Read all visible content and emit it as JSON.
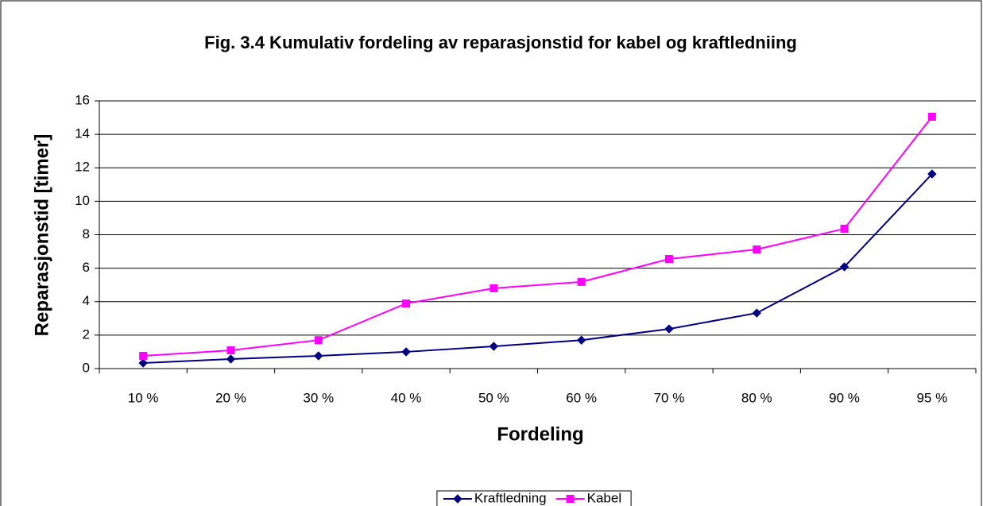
{
  "chart_data": {
    "type": "line",
    "title": "Fig. 3.4 Kumulativ fordeling av reparasjonstid for kabel og kraftledniing",
    "x_label": "Fordeling",
    "y_label": "Reparasjonstid [timer]",
    "categories": [
      "10 %",
      "20 %",
      "30 %",
      "40 %",
      "50 %",
      "60 %",
      "70 %",
      "80 %",
      "90 %",
      "95 %"
    ],
    "series": [
      {
        "name": "Kraftledning",
        "color": "#000080",
        "marker": "diamond",
        "values": [
          0.33,
          0.57,
          0.76,
          1.0,
          1.33,
          1.7,
          2.37,
          3.32,
          6.08,
          11.63
        ]
      },
      {
        "name": "Kabel",
        "color": "#ff00ff",
        "marker": "square",
        "values": [
          0.76,
          1.09,
          1.7,
          3.89,
          4.8,
          5.18,
          6.55,
          7.12,
          8.36,
          15.05
        ]
      }
    ],
    "ylim": [
      0,
      16
    ],
    "yticks": [
      0,
      2,
      4,
      6,
      8,
      10,
      12,
      14,
      16
    ],
    "grid": true,
    "legend": "bottom"
  }
}
